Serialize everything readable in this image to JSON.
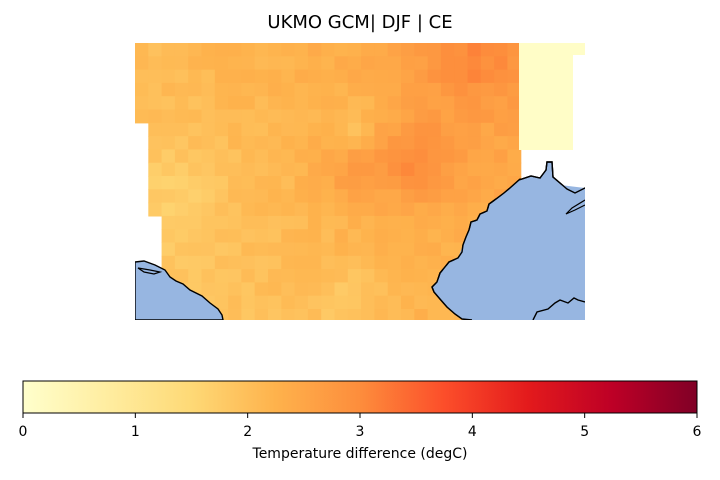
{
  "figure": {
    "title": "UKMO GCM| DJF | CE"
  },
  "colorbar": {
    "label": "Temperature difference (degC)",
    "min": 0,
    "max": 6,
    "ticks": [
      "0",
      "1",
      "2",
      "3",
      "4",
      "5",
      "6"
    ],
    "colormap": "YlOrRd",
    "colors": [
      "#ffffcc",
      "#ffeda0",
      "#fed976",
      "#feb24c",
      "#fd8d3c",
      "#fc4e2a",
      "#e31a1c",
      "#bd0026",
      "#800026"
    ]
  },
  "map": {
    "ocean_color": "#97b6e1",
    "coastline_color": "#000000",
    "field_range_degC": [
      1.5,
      3.5
    ]
  }
}
